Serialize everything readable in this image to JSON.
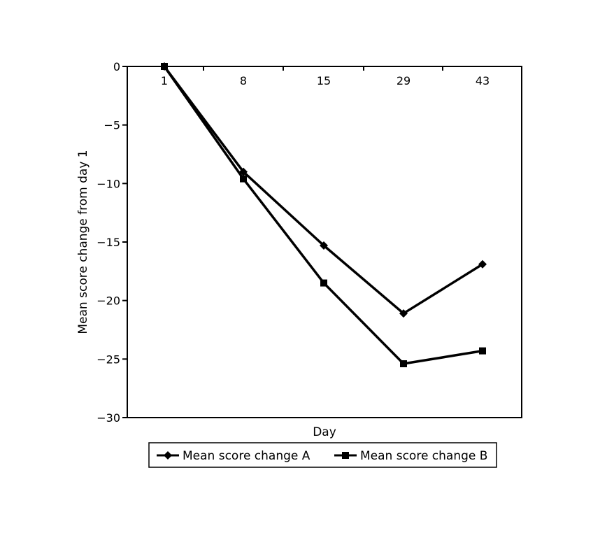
{
  "chart_data": {
    "type": "line",
    "title": "",
    "xlabel": "Day",
    "ylabel": "Mean score change from day 1",
    "categories": [
      "1",
      "8",
      "15",
      "29",
      "43"
    ],
    "ylim": [
      -30,
      0
    ],
    "yticks": [
      0,
      -5,
      -10,
      -15,
      -20,
      -25,
      -30
    ],
    "ytick_labels": [
      "0",
      "−5",
      "−10",
      "−15",
      "−20",
      "−25",
      "−30"
    ],
    "grid": false,
    "legend_position": "bottom",
    "series": [
      {
        "name": "Mean score change A",
        "marker": "diamond",
        "color": "#000000",
        "values": [
          0,
          -9.0,
          -15.3,
          -21.1,
          -16.9
        ]
      },
      {
        "name": "Mean score change B",
        "marker": "square",
        "color": "#000000",
        "values": [
          0,
          -9.6,
          -18.5,
          -25.4,
          -24.3
        ]
      }
    ]
  }
}
